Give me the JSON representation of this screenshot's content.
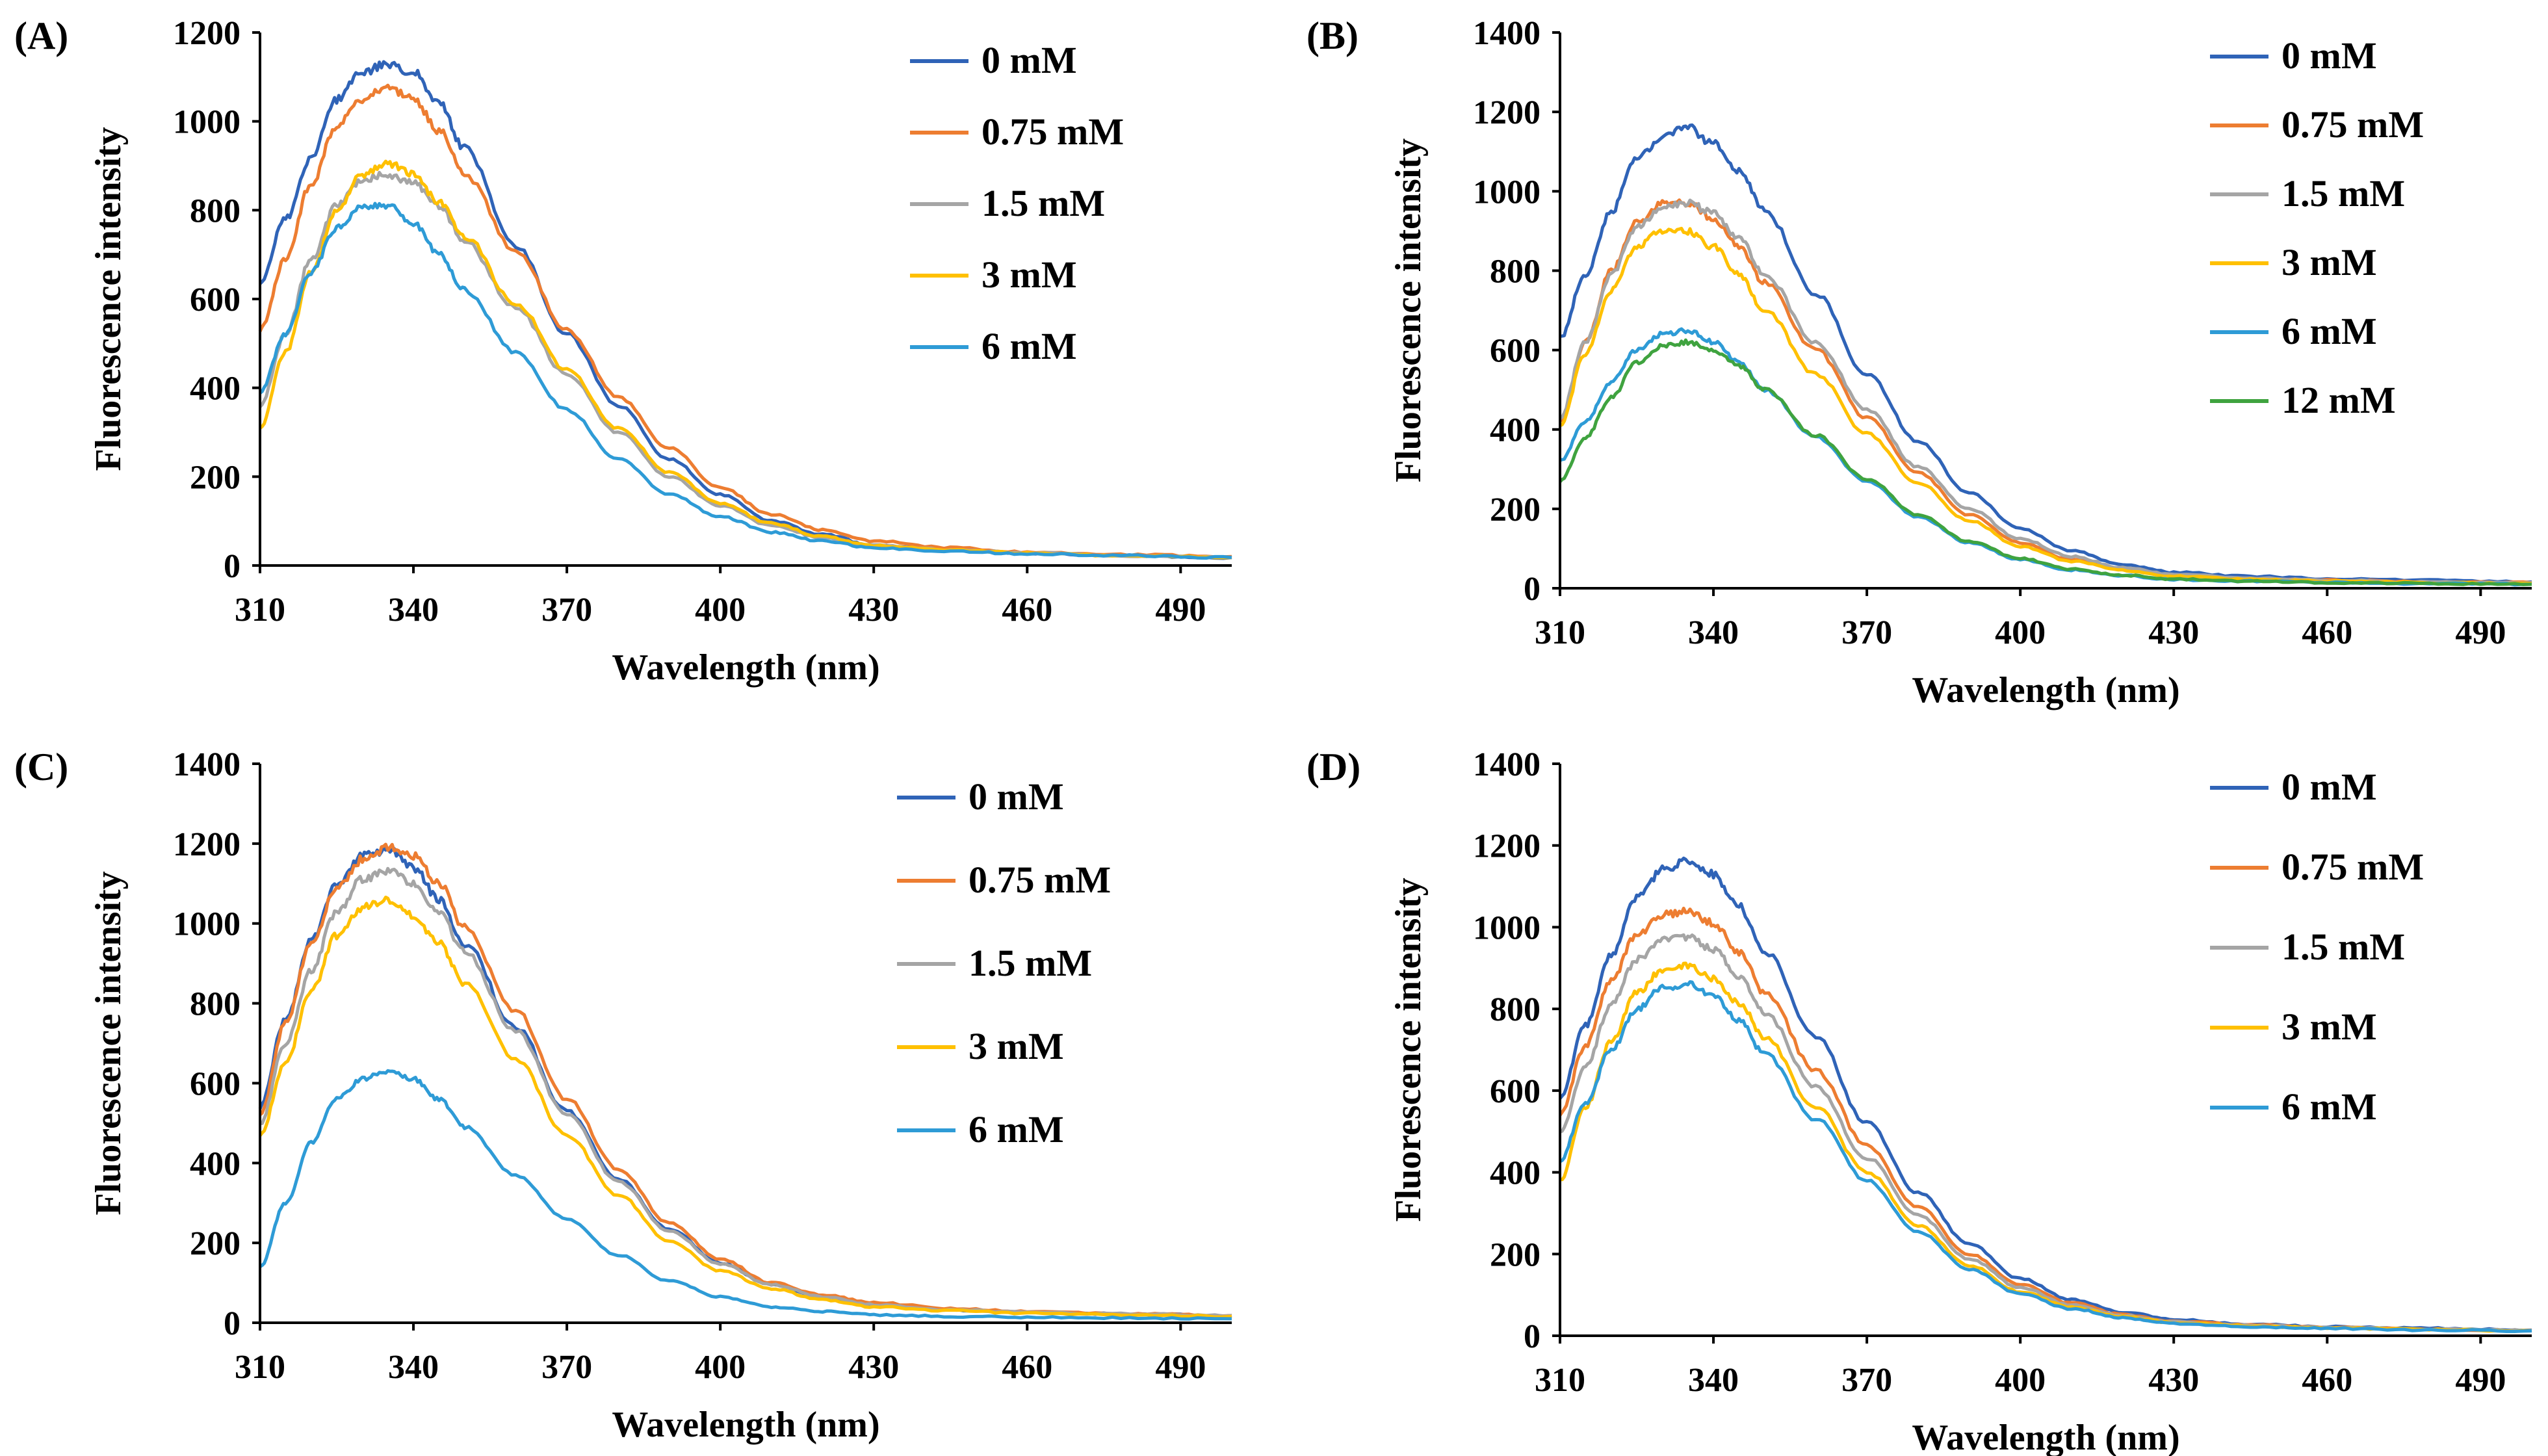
{
  "chart_data": [
    {
      "panel": "(A)",
      "type": "line",
      "xlabel": "Wavelength (nm)",
      "ylabel": "Fluorescence intensity",
      "xlim": [
        310,
        500
      ],
      "ylim": [
        0,
        1200
      ],
      "xticks": [
        310,
        340,
        370,
        400,
        430,
        460,
        490
      ],
      "yticks": [
        0,
        200,
        400,
        600,
        800,
        1000,
        1200
      ],
      "legend_position": "top-right",
      "series": [
        {
          "name": "0 mM",
          "color": "#2F63B7",
          "x": [
            310,
            315,
            320,
            325,
            330,
            335,
            340,
            345,
            350,
            360,
            370,
            380,
            390,
            400,
            410,
            420,
            430,
            445,
            460,
            480,
            500
          ],
          "y": [
            640,
            780,
            920,
            1050,
            1110,
            1130,
            1110,
            1040,
            940,
            720,
            520,
            360,
            240,
            160,
            100,
            70,
            45,
            35,
            28,
            22,
            18
          ]
        },
        {
          "name": "0.75 mM",
          "color": "#ED7D31",
          "x": [
            310,
            315,
            320,
            325,
            330,
            335,
            340,
            345,
            350,
            360,
            370,
            380,
            390,
            400,
            410,
            420,
            430,
            445,
            460,
            480,
            500
          ],
          "y": [
            530,
            690,
            860,
            990,
            1050,
            1075,
            1050,
            980,
            880,
            710,
            530,
            380,
            265,
            175,
            115,
            80,
            55,
            40,
            30,
            24,
            20
          ]
        },
        {
          "name": "1.5 mM",
          "color": "#A5A5A5",
          "x": [
            310,
            315,
            320,
            325,
            330,
            335,
            340,
            345,
            350,
            360,
            370,
            380,
            390,
            400,
            410,
            420,
            430,
            445,
            460,
            480,
            500
          ],
          "y": [
            360,
            520,
            690,
            810,
            870,
            880,
            860,
            810,
            730,
            580,
            430,
            300,
            200,
            135,
            90,
            62,
            45,
            35,
            28,
            22,
            18
          ]
        },
        {
          "name": "3 mM",
          "color": "#FFC000",
          "x": [
            310,
            315,
            320,
            325,
            330,
            335,
            340,
            345,
            350,
            360,
            370,
            380,
            390,
            400,
            410,
            420,
            430,
            445,
            460,
            480,
            500
          ],
          "y": [
            310,
            480,
            660,
            800,
            880,
            905,
            880,
            820,
            740,
            590,
            440,
            310,
            210,
            140,
            95,
            65,
            45,
            35,
            28,
            22,
            18
          ]
        },
        {
          "name": "6 mM",
          "color": "#2E9BD6",
          "x": [
            310,
            315,
            320,
            325,
            330,
            335,
            340,
            345,
            350,
            360,
            370,
            380,
            390,
            400,
            410,
            420,
            430,
            445,
            460,
            480,
            500
          ],
          "y": [
            390,
            520,
            660,
            760,
            810,
            810,
            770,
            700,
            620,
            480,
            350,
            240,
            160,
            110,
            75,
            55,
            40,
            32,
            26,
            22,
            18
          ]
        }
      ]
    },
    {
      "panel": "(B)",
      "type": "line",
      "xlabel": "Wavelength (nm)",
      "ylabel": "Fluorescence intensity",
      "xlim": [
        310,
        500
      ],
      "ylim": [
        0,
        1400
      ],
      "xticks": [
        310,
        340,
        370,
        400,
        430,
        460,
        490
      ],
      "yticks": [
        0,
        200,
        400,
        600,
        800,
        1000,
        1200,
        1400
      ],
      "legend_position": "top-right",
      "series": [
        {
          "name": "0 mM",
          "color": "#2F63B7",
          "x": [
            310,
            315,
            320,
            325,
            330,
            335,
            340,
            345,
            350,
            360,
            370,
            380,
            390,
            400,
            410,
            420,
            430,
            445,
            460,
            480,
            500
          ],
          "y": [
            630,
            790,
            950,
            1080,
            1140,
            1160,
            1120,
            1050,
            950,
            740,
            540,
            370,
            240,
            150,
            95,
            60,
            40,
            30,
            24,
            20,
            16
          ]
        },
        {
          "name": "0.75 mM",
          "color": "#ED7D31",
          "x": [
            310,
            315,
            320,
            325,
            330,
            335,
            340,
            345,
            350,
            360,
            370,
            380,
            390,
            400,
            410,
            420,
            430,
            445,
            460,
            480,
            500
          ],
          "y": [
            420,
            620,
            800,
            920,
            970,
            970,
            930,
            860,
            770,
            600,
            430,
            290,
            185,
            115,
            72,
            48,
            32,
            24,
            20,
            16,
            14
          ]
        },
        {
          "name": "1.5 mM",
          "color": "#A5A5A5",
          "x": [
            310,
            315,
            320,
            325,
            330,
            335,
            340,
            345,
            350,
            360,
            370,
            380,
            390,
            400,
            410,
            420,
            430,
            445,
            460,
            480,
            500
          ],
          "y": [
            430,
            620,
            790,
            910,
            960,
            970,
            945,
            880,
            790,
            620,
            450,
            305,
            200,
            125,
            80,
            52,
            35,
            26,
            20,
            16,
            14
          ]
        },
        {
          "name": "3 mM",
          "color": "#FFC000",
          "x": [
            310,
            315,
            320,
            325,
            330,
            335,
            340,
            345,
            350,
            360,
            370,
            380,
            390,
            400,
            410,
            420,
            430,
            445,
            460,
            480,
            500
          ],
          "y": [
            410,
            590,
            750,
            860,
            900,
            900,
            860,
            790,
            700,
            540,
            390,
            265,
            170,
            105,
            68,
            45,
            30,
            22,
            18,
            14,
            12
          ]
        },
        {
          "name": "6 mM",
          "color": "#2E9BD6",
          "x": [
            310,
            315,
            320,
            325,
            330,
            335,
            340,
            345,
            350,
            360,
            370,
            380,
            390,
            400,
            410,
            420,
            430,
            445,
            460,
            480,
            500
          ],
          "y": [
            320,
            420,
            520,
            600,
            640,
            650,
            620,
            570,
            500,
            380,
            270,
            180,
            115,
            72,
            46,
            32,
            22,
            18,
            14,
            12,
            10
          ]
        },
        {
          "name": "12 mM",
          "color": "#3FA33F",
          "x": [
            310,
            315,
            320,
            325,
            330,
            335,
            340,
            345,
            350,
            360,
            370,
            380,
            390,
            400,
            410,
            420,
            430,
            445,
            460,
            480,
            500
          ],
          "y": [
            270,
            380,
            480,
            570,
            610,
            620,
            600,
            560,
            500,
            385,
            275,
            185,
            118,
            75,
            48,
            33,
            23,
            18,
            14,
            12,
            10
          ]
        }
      ]
    },
    {
      "panel": "(C)",
      "type": "line",
      "xlabel": "Wavelength (nm)",
      "ylabel": "Fluorescence intensity",
      "xlim": [
        310,
        500
      ],
      "ylim": [
        0,
        1400
      ],
      "xticks": [
        310,
        340,
        370,
        400,
        430,
        460,
        490
      ],
      "yticks": [
        0,
        200,
        400,
        600,
        800,
        1000,
        1200,
        1400
      ],
      "legend_position": "top-right",
      "series": [
        {
          "name": "0 mM",
          "color": "#2F63B7",
          "x": [
            310,
            315,
            320,
            325,
            330,
            335,
            340,
            345,
            350,
            360,
            370,
            380,
            390,
            400,
            410,
            420,
            430,
            445,
            460,
            480,
            500
          ],
          "y": [
            540,
            760,
            960,
            1100,
            1170,
            1185,
            1140,
            1060,
            950,
            740,
            530,
            360,
            235,
            150,
            95,
            65,
            45,
            32,
            26,
            22,
            18
          ]
        },
        {
          "name": "0.75 mM",
          "color": "#ED7D31",
          "x": [
            310,
            315,
            320,
            325,
            330,
            335,
            340,
            345,
            350,
            360,
            370,
            380,
            390,
            400,
            410,
            420,
            430,
            445,
            460,
            480,
            500
          ],
          "y": [
            520,
            750,
            950,
            1090,
            1160,
            1190,
            1170,
            1100,
            990,
            780,
            560,
            385,
            250,
            160,
            100,
            70,
            50,
            36,
            28,
            22,
            18
          ]
        },
        {
          "name": "1.5 mM",
          "color": "#A5A5A5",
          "x": [
            310,
            315,
            320,
            325,
            330,
            335,
            340,
            345,
            350,
            360,
            370,
            380,
            390,
            400,
            410,
            420,
            430,
            445,
            460,
            480,
            500
          ],
          "y": [
            500,
            700,
            880,
            1030,
            1110,
            1130,
            1100,
            1030,
            930,
            730,
            520,
            355,
            230,
            148,
            95,
            65,
            45,
            32,
            26,
            22,
            18
          ]
        },
        {
          "name": "3 mM",
          "color": "#FFC000",
          "x": [
            310,
            315,
            320,
            325,
            330,
            335,
            340,
            345,
            350,
            360,
            370,
            380,
            390,
            400,
            410,
            420,
            430,
            445,
            460,
            480,
            500
          ],
          "y": [
            470,
            650,
            830,
            970,
            1040,
            1060,
            1020,
            950,
            850,
            660,
            470,
            320,
            205,
            130,
            85,
            58,
            40,
            30,
            24,
            20,
            16
          ]
        },
        {
          "name": "6 mM",
          "color": "#2E9BD6",
          "x": [
            310,
            315,
            320,
            325,
            330,
            335,
            340,
            345,
            350,
            360,
            370,
            380,
            390,
            400,
            410,
            420,
            430,
            445,
            460,
            480,
            500
          ],
          "y": [
            140,
            300,
            450,
            560,
            610,
            630,
            610,
            560,
            490,
            370,
            260,
            170,
            105,
            65,
            40,
            28,
            20,
            16,
            14,
            12,
            10
          ]
        }
      ]
    },
    {
      "panel": "(D)",
      "type": "line",
      "xlabel": "Wavelength (nm)",
      "ylabel": "Fluorescence intensity",
      "xlim": [
        310,
        500
      ],
      "ylim": [
        0,
        1400
      ],
      "xticks": [
        310,
        340,
        370,
        400,
        430,
        460,
        490
      ],
      "yticks": [
        0,
        200,
        400,
        600,
        800,
        1000,
        1200,
        1400
      ],
      "legend_position": "top-right",
      "series": [
        {
          "name": "0 mM",
          "color": "#2F63B7",
          "x": [
            310,
            315,
            320,
            325,
            330,
            335,
            340,
            345,
            350,
            360,
            370,
            380,
            390,
            400,
            410,
            420,
            430,
            445,
            460,
            480,
            500
          ],
          "y": [
            580,
            760,
            930,
            1070,
            1140,
            1160,
            1130,
            1050,
            940,
            730,
            520,
            350,
            225,
            140,
            88,
            58,
            40,
            28,
            22,
            18,
            14
          ]
        },
        {
          "name": "0.75 mM",
          "color": "#ED7D31",
          "x": [
            310,
            315,
            320,
            325,
            330,
            335,
            340,
            345,
            350,
            360,
            370,
            380,
            390,
            400,
            410,
            420,
            430,
            445,
            460,
            480,
            500
          ],
          "y": [
            540,
            710,
            870,
            980,
            1030,
            1040,
            1010,
            940,
            840,
            650,
            465,
            315,
            200,
            125,
            80,
            52,
            36,
            26,
            20,
            16,
            13
          ]
        },
        {
          "name": "1.5 mM",
          "color": "#A5A5A5",
          "x": [
            310,
            315,
            320,
            325,
            330,
            335,
            340,
            345,
            350,
            360,
            370,
            380,
            390,
            400,
            410,
            420,
            430,
            445,
            460,
            480,
            500
          ],
          "y": [
            500,
            660,
            810,
            920,
            970,
            975,
            945,
            880,
            790,
            610,
            435,
            295,
            188,
            118,
            75,
            50,
            34,
            25,
            20,
            16,
            13
          ]
        },
        {
          "name": "3 mM",
          "color": "#FFC000",
          "x": [
            310,
            315,
            320,
            325,
            330,
            335,
            340,
            345,
            350,
            360,
            370,
            380,
            390,
            400,
            410,
            420,
            430,
            445,
            460,
            480,
            500
          ],
          "y": [
            380,
            560,
            720,
            840,
            895,
            905,
            875,
            815,
            730,
            560,
            400,
            270,
            172,
            108,
            70,
            47,
            32,
            24,
            19,
            15,
            12
          ]
        },
        {
          "name": "6 mM",
          "color": "#2E9BD6",
          "x": [
            310,
            315,
            320,
            325,
            330,
            335,
            340,
            345,
            350,
            360,
            370,
            380,
            390,
            400,
            410,
            420,
            430,
            445,
            460,
            480,
            500
          ],
          "y": [
            430,
            570,
            700,
            800,
            850,
            860,
            830,
            770,
            690,
            530,
            380,
            255,
            163,
            102,
            66,
            44,
            30,
            22,
            18,
            14,
            12
          ]
        }
      ]
    }
  ]
}
